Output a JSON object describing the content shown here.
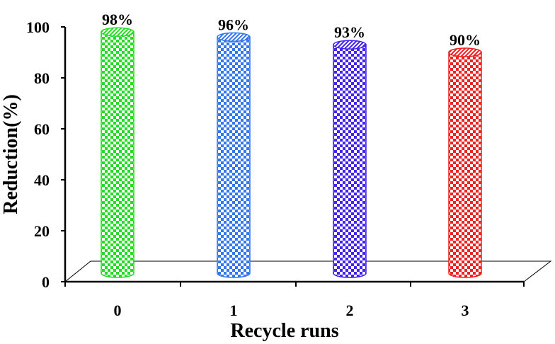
{
  "chart_data": {
    "type": "bar",
    "style": "3d-cylinder",
    "categories": [
      "0",
      "1",
      "2",
      "3"
    ],
    "values": [
      98,
      96,
      93,
      90
    ],
    "data_labels": [
      "98%",
      "96%",
      "93%",
      "90%"
    ],
    "xlabel": "Recycle runs",
    "ylabel": "Reduction(%)",
    "ylim": [
      0,
      100
    ],
    "yticks": [
      "0",
      "20",
      "40",
      "60",
      "80",
      "100"
    ],
    "grid": false,
    "legend": "none",
    "colors": [
      "#22dd22",
      "#3377ee",
      "#4422ee",
      "#ee2222"
    ],
    "pattern": "checkered"
  }
}
